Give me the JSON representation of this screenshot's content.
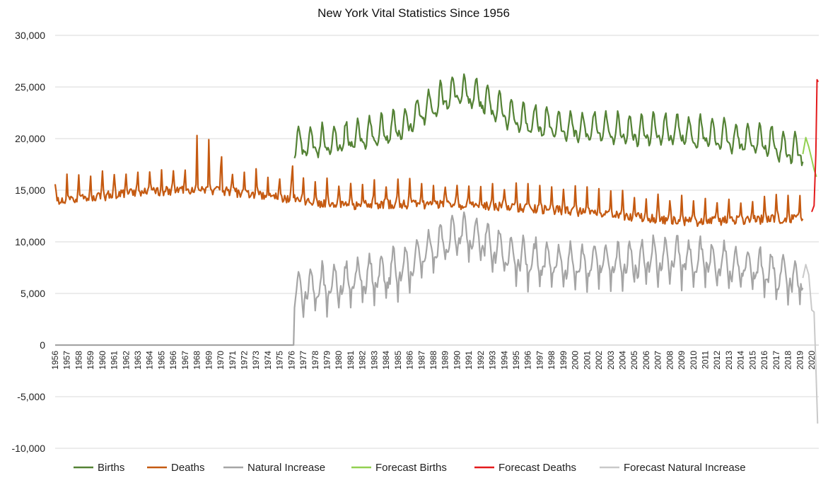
{
  "chart_data": {
    "type": "line",
    "title": "New York Vital Statistics Since 1956",
    "xlabel": "",
    "ylabel": "",
    "ylim": [
      -10000,
      30000
    ],
    "yticks": [
      30000,
      25000,
      20000,
      15000,
      10000,
      5000,
      0,
      -5000,
      -10000
    ],
    "ytick_labels": [
      "30,000",
      "25,000",
      "20,000",
      "15,000",
      "10,000",
      "5,000",
      "0",
      "-5,000",
      "-10,000"
    ],
    "grid": true,
    "legend_position": "bottom",
    "x_start_year": 1956,
    "x_end": 2020.6,
    "x_tick_labels": [
      "1956",
      "1957",
      "1958",
      "1959",
      "1960",
      "1961",
      "1962",
      "1963",
      "1964",
      "1965",
      "1966",
      "1967",
      "1968",
      "1969",
      "1970",
      "1971",
      "1972",
      "1973",
      "1974",
      "1975",
      "1976",
      "1977",
      "1978",
      "1979",
      "1980",
      "1981",
      "1982",
      "1983",
      "1984",
      "1985",
      "1986",
      "1987",
      "1988",
      "1989",
      "1990",
      "1991",
      "1992",
      "1993",
      "1994",
      "1995",
      "1996",
      "1997",
      "1998",
      "1999",
      "2000",
      "2001",
      "2002",
      "2003",
      "2004",
      "2005",
      "2006",
      "2007",
      "2008",
      "2009",
      "2010",
      "2011",
      "2012",
      "2013",
      "2014",
      "2015",
      "2016",
      "2017",
      "2018",
      "2019",
      "2020"
    ],
    "series": [
      {
        "name": "Births",
        "color": "#548235",
        "monthly": true,
        "start_year": 1976.25,
        "annual_levels": {
          "years": [
            1976,
            1980,
            1985,
            1988,
            1990,
            1992,
            1995,
            2000,
            2005,
            2008,
            2012,
            2016,
            2019.2
          ],
          "values": [
            19300,
            19700,
            21000,
            23200,
            24600,
            23900,
            21800,
            21000,
            20600,
            20700,
            20200,
            19600,
            18600
          ]
        },
        "seasonal_amplitude": 1600
      },
      {
        "name": "Deaths",
        "color": "#c55a11",
        "monthly": true,
        "start_year": 1956.0,
        "annual_levels": {
          "years": [
            1956,
            1960,
            1965,
            1970,
            1975,
            1980,
            1985,
            1990,
            1995,
            2000,
            2005,
            2010,
            2015,
            2019.2
          ],
          "values": [
            14300,
            14800,
            15300,
            15300,
            14700,
            13900,
            14000,
            13900,
            13700,
            13300,
            12800,
            12300,
            12500,
            12700
          ]
        },
        "seasonal_amplitude": 1500,
        "peaks": [
          {
            "x": 1968.0,
            "y": 20300
          },
          {
            "x": 1969.0,
            "y": 19900
          },
          {
            "x": 1970.1,
            "y": 18900
          },
          {
            "x": 1976.1,
            "y": 18000
          }
        ]
      },
      {
        "name": "Natural Increase",
        "color": "#a5a5a5",
        "monthly": true,
        "zero_until": 1976.0,
        "derived": "births_minus_deaths"
      },
      {
        "name": "Forecast Births",
        "color": "#92d050",
        "points": [
          [
            2019.25,
            18500
          ],
          [
            2019.5,
            20100
          ],
          [
            2019.75,
            19200
          ],
          [
            2020.0,
            18000
          ],
          [
            2020.2,
            17000
          ],
          [
            2020.4,
            16300
          ]
        ]
      },
      {
        "name": "Forecast Deaths",
        "color": "#e31a1c",
        "points": [
          [
            2020.0,
            12900
          ],
          [
            2020.2,
            13500
          ],
          [
            2020.35,
            18500
          ],
          [
            2020.45,
            25700
          ],
          [
            2020.55,
            25500
          ]
        ]
      },
      {
        "name": "Forecast Natural Increase",
        "color": "#c9c9c9",
        "points": [
          [
            2019.25,
            6500
          ],
          [
            2019.5,
            7800
          ],
          [
            2019.75,
            6800
          ],
          [
            2020.0,
            3400
          ],
          [
            2020.2,
            3200
          ],
          [
            2020.35,
            -2000
          ],
          [
            2020.5,
            -7600
          ]
        ]
      }
    ]
  }
}
